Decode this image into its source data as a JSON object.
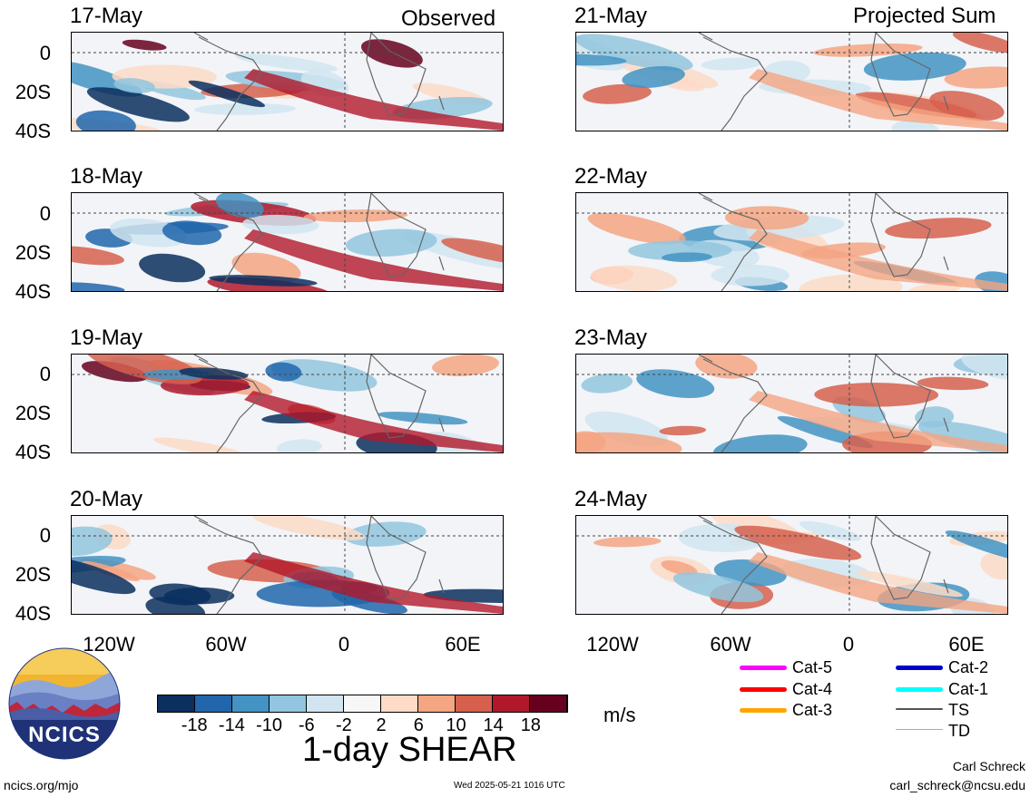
{
  "columns": {
    "left_title": "Observed",
    "right_title": "Projected Sum"
  },
  "panels": {
    "left": [
      {
        "date": "17-May"
      },
      {
        "date": "18-May"
      },
      {
        "date": "19-May"
      },
      {
        "date": "20-May"
      }
    ],
    "right": [
      {
        "date": "21-May"
      },
      {
        "date": "22-May"
      },
      {
        "date": "23-May"
      },
      {
        "date": "24-May"
      }
    ]
  },
  "axes": {
    "y_ticks": [
      "0",
      "20S",
      "40S"
    ],
    "x_ticks": [
      "120W",
      "60W",
      "0",
      "60E"
    ]
  },
  "colorbar": {
    "labels": [
      "-18",
      "-14",
      "-10",
      "-6",
      "-2",
      "2",
      "6",
      "10",
      "14",
      "18"
    ],
    "colors": [
      "#0b2f5e",
      "#2166ac",
      "#4393c3",
      "#92c5de",
      "#d1e5f0",
      "#f7f7f7",
      "#fddbc7",
      "#f4a582",
      "#d6604d",
      "#b2182b",
      "#67001f"
    ],
    "units": "m/s",
    "title": "1-day SHEAR"
  },
  "legend": [
    {
      "label": "Cat-5",
      "color": "#ff00ff"
    },
    {
      "label": "Cat-4",
      "color": "#ff0000"
    },
    {
      "label": "Cat-3",
      "color": "#ffa500"
    },
    {
      "label": "Cat-2",
      "color": "#0000cd"
    },
    {
      "label": "Cat-1",
      "color": "#00ffff"
    },
    {
      "label": "TS",
      "color": "#555555"
    },
    {
      "label": "TD",
      "color": "#aaaaaa"
    }
  ],
  "footer": {
    "logo_text": "NCICS",
    "url": "ncics.org/mjo",
    "timestamp": "Wed 2025-05-21 1016 UTC",
    "author": "Carl Schreck",
    "email": "carl_schreck@ncsu.edu"
  }
}
